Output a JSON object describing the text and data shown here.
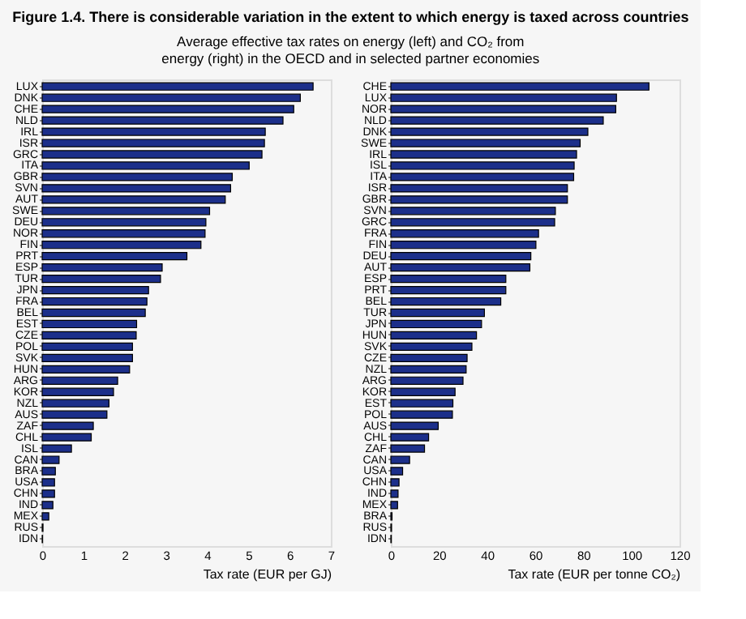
{
  "chart_data": [
    {
      "type": "bar",
      "orientation": "horizontal",
      "title": "Figure 1.4. There is considerable variation in the extent to which energy is taxed across countries",
      "subtitle": "Average effective tax rates on energy (left) and CO₂ from energy (right) in the OECD and in selected partner economies",
      "xlabel": "Tax rate (EUR per GJ)",
      "color": "#1c2f8a",
      "grid": false,
      "xlim": [
        0,
        7
      ],
      "xticks": [
        0,
        1,
        2,
        3,
        4,
        5,
        6,
        7
      ],
      "categories": [
        "LUX",
        "DNK",
        "CHE",
        "NLD",
        "IRL",
        "ISR",
        "GRC",
        "ITA",
        "GBR",
        "SVN",
        "AUT",
        "SWE",
        "DEU",
        "NOR",
        "FIN",
        "PRT",
        "ESP",
        "TUR",
        "JPN",
        "FRA",
        "BEL",
        "EST",
        "CZE",
        "POL",
        "SVK",
        "HUN",
        "ARG",
        "KOR",
        "NZL",
        "AUS",
        "ZAF",
        "CHL",
        "ISL",
        "CAN",
        "BRA",
        "USA",
        "CHN",
        "IND",
        "MEX",
        "RUS",
        "IDN"
      ],
      "values": [
        6.57,
        6.26,
        6.1,
        5.84,
        5.41,
        5.39,
        5.33,
        5.02,
        4.61,
        4.57,
        4.44,
        4.06,
        3.97,
        3.95,
        3.85,
        3.51,
        2.91,
        2.87,
        2.58,
        2.54,
        2.5,
        2.29,
        2.28,
        2.19,
        2.19,
        2.12,
        1.83,
        1.73,
        1.62,
        1.57,
        1.24,
        1.19,
        0.71,
        0.41,
        0.32,
        0.3,
        0.3,
        0.26,
        0.16,
        0.02,
        0.01
      ]
    },
    {
      "type": "bar",
      "orientation": "horizontal",
      "xlabel": "Tax rate (EUR per tonne CO₂)",
      "color": "#1c2f8a",
      "grid": false,
      "xlim": [
        0,
        120
      ],
      "xticks": [
        0,
        20,
        40,
        60,
        80,
        100,
        120
      ],
      "categories": [
        "CHE",
        "LUX",
        "NOR",
        "NLD",
        "DNK",
        "SWE",
        "IRL",
        "ISL",
        "ITA",
        "ISR",
        "GBR",
        "SVN",
        "GRC",
        "FRA",
        "FIN",
        "DEU",
        "AUT",
        "ESP",
        "PRT",
        "BEL",
        "TUR",
        "JPN",
        "HUN",
        "SVK",
        "CZE",
        "NZL",
        "ARG",
        "KOR",
        "EST",
        "POL",
        "AUS",
        "CHL",
        "ZAF",
        "CAN",
        "USA",
        "CHN",
        "IND",
        "MEX",
        "BRA",
        "RUS",
        "IDN"
      ],
      "values": [
        107.3,
        93.8,
        93.5,
        88.3,
        81.9,
        78.7,
        77.2,
        76.2,
        76,
        73.4,
        73.4,
        68.4,
        68.1,
        61.4,
        60.3,
        58.2,
        57.8,
        47.8,
        47.8,
        45.7,
        38.9,
        37.7,
        35.6,
        33.7,
        31.7,
        31.3,
        30,
        26.7,
        25.8,
        25.6,
        19.7,
        15.7,
        14,
        7.8,
        4.9,
        3.4,
        3,
        2.8,
        0.5,
        0.3,
        0.2
      ]
    }
  ]
}
